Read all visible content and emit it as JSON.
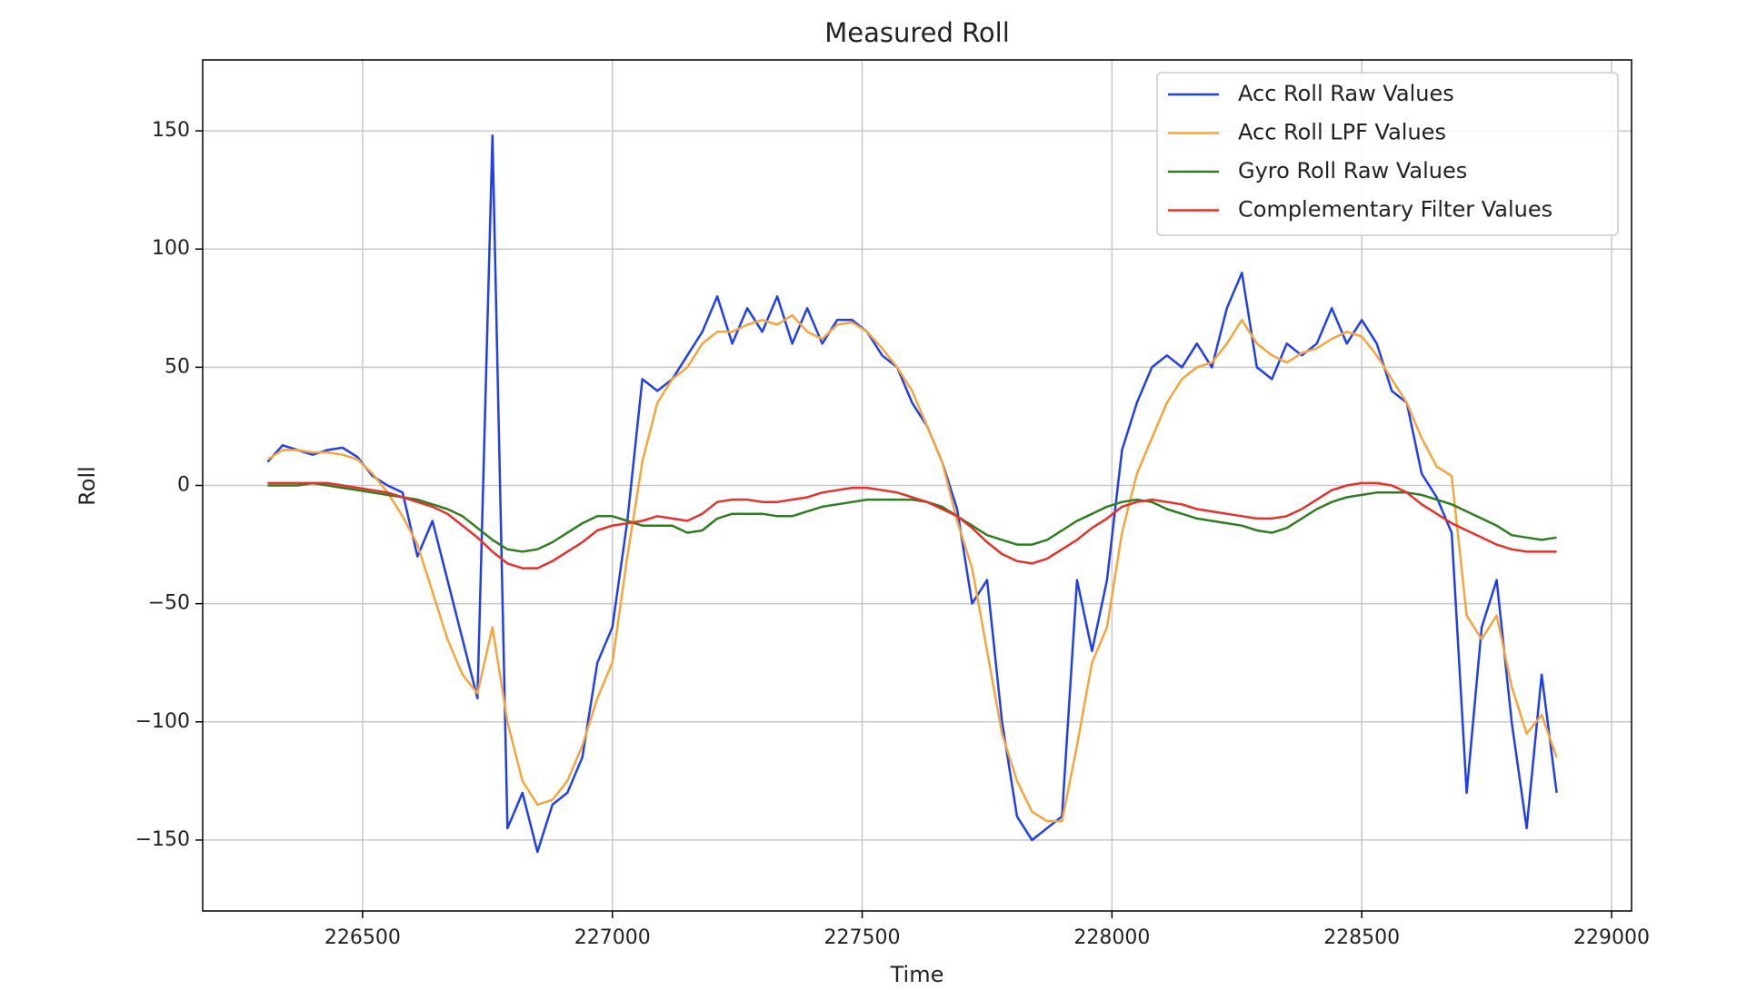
{
  "chart_data": {
    "type": "line",
    "title": "Measured Roll",
    "x_label": "Time",
    "y_label": "Roll",
    "x": [
      226310,
      226340,
      226370,
      226400,
      226430,
      226460,
      226490,
      226520,
      226550,
      226580,
      226610,
      226640,
      226670,
      226700,
      226730,
      226760,
      226790,
      226820,
      226850,
      226880,
      226910,
      226940,
      226970,
      227000,
      227030,
      227060,
      227090,
      227120,
      227150,
      227180,
      227210,
      227240,
      227270,
      227300,
      227330,
      227360,
      227390,
      227420,
      227450,
      227480,
      227510,
      227540,
      227570,
      227600,
      227630,
      227660,
      227690,
      227720,
      227750,
      227780,
      227810,
      227840,
      227870,
      227900,
      227930,
      227960,
      227990,
      228020,
      228050,
      228080,
      228110,
      228140,
      228170,
      228200,
      228230,
      228260,
      228290,
      228320,
      228350,
      228380,
      228410,
      228440,
      228470,
      228500,
      228530,
      228560,
      228590,
      228620,
      228650,
      228680,
      228710,
      228740,
      228770,
      228800,
      228830,
      228860,
      228890
    ],
    "series": [
      {
        "name": "Acc Roll Raw Values",
        "color": "#1f3ef0",
        "values": [
          10,
          17,
          15,
          13,
          15,
          16,
          12,
          4,
          0,
          -3,
          -30,
          -15,
          -40,
          -65,
          -90,
          148,
          -145,
          -130,
          -155,
          -135,
          -130,
          -115,
          -75,
          -60,
          -15,
          45,
          40,
          45,
          55,
          65,
          80,
          60,
          75,
          65,
          80,
          60,
          75,
          60,
          70,
          70,
          65,
          55,
          50,
          35,
          25,
          10,
          -10,
          -50,
          -40,
          -100,
          -140,
          -150,
          -145,
          -140,
          -40,
          -70,
          -40,
          15,
          35,
          50,
          55,
          50,
          60,
          50,
          75,
          90,
          50,
          45,
          60,
          55,
          60,
          75,
          60,
          70,
          60,
          40,
          35,
          5,
          -5,
          -20,
          -130,
          -60,
          -40,
          -100,
          -145,
          -80,
          -130
        ]
      },
      {
        "name": "Acc Roll LPF Values",
        "color": "#f5a53a",
        "values": [
          11,
          15,
          15,
          14,
          14,
          13,
          11,
          5,
          -3,
          -13,
          -25,
          -45,
          -65,
          -80,
          -88,
          -60,
          -100,
          -125,
          -135,
          -133,
          -125,
          -110,
          -90,
          -75,
          -30,
          10,
          35,
          45,
          50,
          60,
          65,
          65,
          68,
          70,
          68,
          72,
          65,
          62,
          68,
          69,
          65,
          58,
          50,
          40,
          25,
          10,
          -15,
          -35,
          -70,
          -105,
          -125,
          -138,
          -142,
          -142,
          -110,
          -75,
          -60,
          -20,
          5,
          20,
          35,
          45,
          50,
          52,
          60,
          70,
          60,
          55,
          52,
          56,
          58,
          62,
          65,
          63,
          55,
          45,
          35,
          20,
          8,
          4,
          -55,
          -65,
          -55,
          -85,
          -105,
          -97,
          -115
        ]
      },
      {
        "name": "Gyro Roll Raw Values",
        "color": "#2e7d1f",
        "values": [
          0,
          0,
          0,
          1,
          0,
          -1,
          -2,
          -3,
          -4,
          -5,
          -6,
          -8,
          -10,
          -13,
          -18,
          -23,
          -27,
          -28,
          -27,
          -24,
          -20,
          -16,
          -13,
          -13,
          -15,
          -17,
          -17,
          -17,
          -20,
          -19,
          -14,
          -12,
          -12,
          -12,
          -13,
          -13,
          -11,
          -9,
          -8,
          -7,
          -6,
          -6,
          -6,
          -6,
          -7,
          -9,
          -13,
          -17,
          -21,
          -23,
          -25,
          -25,
          -23,
          -19,
          -15,
          -12,
          -9,
          -7,
          -6,
          -7,
          -10,
          -12,
          -14,
          -15,
          -16,
          -17,
          -19,
          -20,
          -18,
          -14,
          -10,
          -7,
          -5,
          -4,
          -3,
          -3,
          -3,
          -4,
          -6,
          -8,
          -11,
          -14,
          -17,
          -21,
          -22,
          -23,
          -22
        ]
      },
      {
        "name": "Complementary Filter Values",
        "color": "#e8302a",
        "values": [
          1,
          1,
          1,
          1,
          1,
          0,
          -1,
          -2,
          -3,
          -5,
          -7,
          -9,
          -12,
          -17,
          -22,
          -28,
          -33,
          -35,
          -35,
          -32,
          -28,
          -24,
          -19,
          -17,
          -16,
          -15,
          -13,
          -14,
          -15,
          -12,
          -7,
          -6,
          -6,
          -7,
          -7,
          -6,
          -5,
          -3,
          -2,
          -1,
          -1,
          -2,
          -3,
          -5,
          -7,
          -10,
          -13,
          -18,
          -24,
          -29,
          -32,
          -33,
          -31,
          -27,
          -23,
          -18,
          -14,
          -9,
          -7,
          -6,
          -7,
          -8,
          -10,
          -11,
          -12,
          -13,
          -14,
          -14,
          -13,
          -10,
          -6,
          -2,
          0,
          1,
          1,
          0,
          -3,
          -8,
          -12,
          -16,
          -19,
          -22,
          -25,
          -27,
          -28,
          -28,
          -28
        ]
      }
    ],
    "xlim": [
      226180,
      229040
    ],
    "ylim": [
      -180,
      180
    ],
    "xticks": [
      226500,
      227000,
      227500,
      228000,
      228500,
      229000
    ],
    "yticks": [
      {
        "value": -150,
        "label": "−150"
      },
      {
        "value": -100,
        "label": "−100"
      },
      {
        "value": -50,
        "label": "−50"
      },
      0,
      50,
      100,
      150
    ],
    "grid": true,
    "legend": "upper right"
  }
}
